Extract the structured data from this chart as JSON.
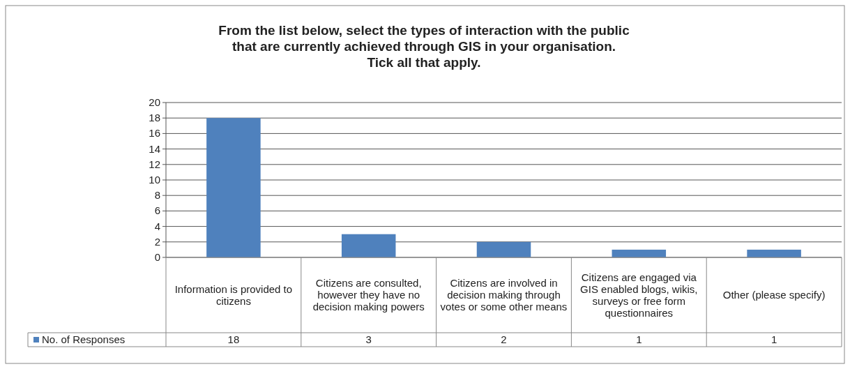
{
  "chart_data": {
    "type": "bar",
    "title": "From the list  below, select the types of interaction with the public\nthat are currently achieved through GIS in your organisation.\nTick all that apply.",
    "categories": [
      "Information is provided to citizens",
      "Citizens are consulted, however they have no decision making powers",
      "Citizens are involved in decision making through votes or some other means",
      "Citizens are engaged via GIS enabled blogs, wikis, surveys or free form questionnaires",
      "Other (please specify)"
    ],
    "series": [
      {
        "name": "No. of Responses",
        "color": "#4f81bd",
        "values": [
          18,
          3,
          2,
          1,
          1
        ]
      }
    ],
    "ylim": [
      0,
      20
    ],
    "yticks": [
      0,
      2,
      4,
      6,
      8,
      10,
      12,
      14,
      16,
      18,
      20
    ],
    "grid": "y",
    "legend": "bottom",
    "data_labels": true
  }
}
